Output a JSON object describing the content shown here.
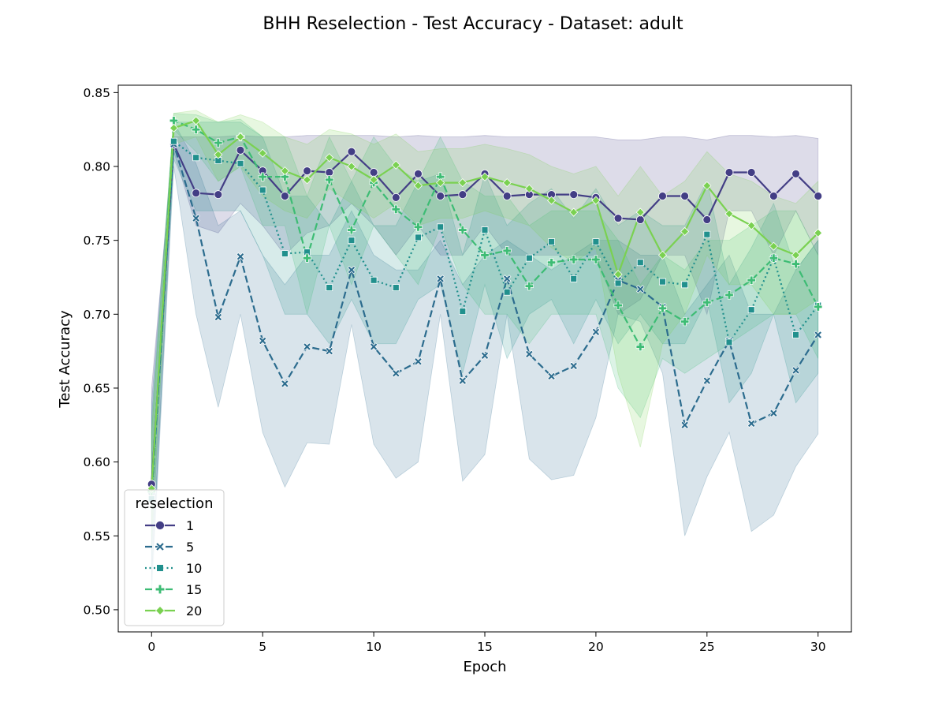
{
  "chart_data": {
    "type": "line",
    "title": "BHH Reselection - Test Accuracy - Dataset: adult",
    "xlabel": "Epoch",
    "ylabel": "Test Accuracy",
    "xlim": [
      -1.5,
      31.5
    ],
    "ylim": [
      0.485,
      0.855
    ],
    "xticks": [
      0,
      5,
      10,
      15,
      20,
      25,
      30
    ],
    "yticks": [
      0.5,
      0.55,
      0.6,
      0.65,
      0.7,
      0.75,
      0.8,
      0.85
    ],
    "grid": false,
    "legend": {
      "title": "reselection",
      "placement": "lower-left"
    },
    "x": [
      0,
      1,
      2,
      3,
      4,
      5,
      6,
      7,
      8,
      9,
      10,
      11,
      12,
      13,
      14,
      15,
      16,
      17,
      18,
      19,
      20,
      21,
      22,
      23,
      24,
      25,
      26,
      27,
      28,
      29,
      30
    ],
    "series": [
      {
        "name": "1",
        "color": "#433e85",
        "dash": "solid",
        "marker": "circle",
        "values": [
          0.585,
          0.815,
          0.782,
          0.781,
          0.811,
          0.797,
          0.78,
          0.797,
          0.796,
          0.81,
          0.796,
          0.779,
          0.795,
          0.78,
          0.781,
          0.795,
          0.78,
          0.781,
          0.781,
          0.781,
          0.779,
          0.765,
          0.764,
          0.78,
          0.78,
          0.764,
          0.796,
          0.796,
          0.78,
          0.795,
          0.78
        ],
        "lower": [
          0.52,
          0.81,
          0.76,
          0.755,
          0.775,
          0.76,
          0.74,
          0.755,
          0.76,
          0.775,
          0.76,
          0.74,
          0.76,
          0.74,
          0.74,
          0.76,
          0.74,
          0.74,
          0.74,
          0.74,
          0.74,
          0.7,
          0.71,
          0.74,
          0.74,
          0.7,
          0.77,
          0.77,
          0.74,
          0.77,
          0.74
        ],
        "upper": [
          0.65,
          0.82,
          0.82,
          0.82,
          0.821,
          0.82,
          0.82,
          0.821,
          0.821,
          0.821,
          0.821,
          0.82,
          0.821,
          0.82,
          0.82,
          0.821,
          0.82,
          0.82,
          0.82,
          0.82,
          0.82,
          0.818,
          0.818,
          0.82,
          0.82,
          0.818,
          0.821,
          0.821,
          0.82,
          0.821,
          0.819
        ]
      },
      {
        "name": "5",
        "color": "#2c6c8e",
        "dash": "dashed",
        "marker": "x",
        "values": [
          0.577,
          0.815,
          0.765,
          0.698,
          0.739,
          0.682,
          0.653,
          0.678,
          0.675,
          0.73,
          0.678,
          0.66,
          0.668,
          0.724,
          0.655,
          0.672,
          0.724,
          0.673,
          0.658,
          0.665,
          0.688,
          0.723,
          0.717,
          0.705,
          0.625,
          0.655,
          0.682,
          0.626,
          0.633,
          0.662,
          0.686
        ],
        "lower": [
          0.51,
          0.8,
          0.7,
          0.637,
          0.7,
          0.62,
          0.583,
          0.613,
          0.612,
          0.693,
          0.612,
          0.589,
          0.6,
          0.7,
          0.587,
          0.605,
          0.7,
          0.602,
          0.588,
          0.591,
          0.63,
          0.7,
          0.695,
          0.66,
          0.55,
          0.59,
          0.62,
          0.553,
          0.564,
          0.597,
          0.619
        ],
        "upper": [
          0.64,
          0.83,
          0.802,
          0.76,
          0.77,
          0.74,
          0.72,
          0.74,
          0.74,
          0.77,
          0.74,
          0.73,
          0.73,
          0.75,
          0.72,
          0.74,
          0.75,
          0.74,
          0.73,
          0.74,
          0.75,
          0.75,
          0.74,
          0.74,
          0.7,
          0.72,
          0.74,
          0.7,
          0.7,
          0.73,
          0.75
        ]
      },
      {
        "name": "10",
        "color": "#21908d",
        "dash": "dotted",
        "marker": "square",
        "values": [
          0.575,
          0.817,
          0.806,
          0.804,
          0.802,
          0.784,
          0.741,
          0.742,
          0.718,
          0.75,
          0.723,
          0.718,
          0.752,
          0.759,
          0.702,
          0.757,
          0.715,
          0.738,
          0.749,
          0.724,
          0.749,
          0.721,
          0.735,
          0.722,
          0.72,
          0.754,
          0.681,
          0.703,
          0.738,
          0.686,
          0.706
        ],
        "lower": [
          0.52,
          0.805,
          0.77,
          0.77,
          0.77,
          0.74,
          0.7,
          0.7,
          0.68,
          0.71,
          0.68,
          0.68,
          0.71,
          0.72,
          0.66,
          0.72,
          0.67,
          0.7,
          0.71,
          0.68,
          0.71,
          0.68,
          0.7,
          0.68,
          0.68,
          0.71,
          0.64,
          0.66,
          0.7,
          0.64,
          0.66
        ],
        "upper": [
          0.63,
          0.83,
          0.83,
          0.83,
          0.83,
          0.82,
          0.78,
          0.78,
          0.76,
          0.79,
          0.76,
          0.76,
          0.79,
          0.795,
          0.74,
          0.795,
          0.76,
          0.775,
          0.785,
          0.765,
          0.785,
          0.76,
          0.77,
          0.76,
          0.76,
          0.79,
          0.72,
          0.745,
          0.775,
          0.73,
          0.75
        ]
      },
      {
        "name": "15",
        "color": "#3dbc74",
        "dash": "dashed",
        "marker": "plus",
        "values": [
          0.58,
          0.831,
          0.825,
          0.816,
          0.82,
          0.793,
          0.793,
          0.738,
          0.791,
          0.757,
          0.789,
          0.771,
          0.759,
          0.793,
          0.757,
          0.74,
          0.743,
          0.719,
          0.735,
          0.737,
          0.737,
          0.706,
          0.678,
          0.704,
          0.695,
          0.708,
          0.713,
          0.723,
          0.738,
          0.734,
          0.705
        ],
        "lower": [
          0.54,
          0.825,
          0.81,
          0.79,
          0.8,
          0.76,
          0.76,
          0.7,
          0.76,
          0.72,
          0.76,
          0.74,
          0.72,
          0.76,
          0.72,
          0.7,
          0.7,
          0.68,
          0.7,
          0.7,
          0.7,
          0.65,
          0.63,
          0.67,
          0.66,
          0.67,
          0.68,
          0.69,
          0.7,
          0.7,
          0.67
        ],
        "upper": [
          0.62,
          0.836,
          0.835,
          0.83,
          0.832,
          0.82,
          0.82,
          0.78,
          0.82,
          0.79,
          0.82,
          0.8,
          0.79,
          0.82,
          0.79,
          0.78,
          0.78,
          0.76,
          0.77,
          0.77,
          0.77,
          0.75,
          0.72,
          0.74,
          0.73,
          0.75,
          0.75,
          0.76,
          0.77,
          0.77,
          0.74
        ]
      },
      {
        "name": "20",
        "color": "#7ad151",
        "dash": "solid",
        "marker": "diamond",
        "values": [
          0.582,
          0.826,
          0.831,
          0.808,
          0.82,
          0.809,
          0.797,
          0.791,
          0.806,
          0.8,
          0.791,
          0.801,
          0.787,
          0.789,
          0.789,
          0.793,
          0.789,
          0.785,
          0.777,
          0.769,
          0.777,
          0.727,
          0.769,
          0.74,
          0.756,
          0.787,
          0.768,
          0.76,
          0.746,
          0.74,
          0.755
        ],
        "lower": [
          0.55,
          0.815,
          0.82,
          0.79,
          0.8,
          0.78,
          0.77,
          0.765,
          0.785,
          0.775,
          0.765,
          0.775,
          0.76,
          0.765,
          0.765,
          0.77,
          0.765,
          0.76,
          0.745,
          0.735,
          0.745,
          0.66,
          0.61,
          0.68,
          0.7,
          0.74,
          0.72,
          0.72,
          0.7,
          0.7,
          0.71
        ],
        "upper": [
          0.62,
          0.836,
          0.838,
          0.83,
          0.835,
          0.83,
          0.82,
          0.815,
          0.825,
          0.822,
          0.815,
          0.822,
          0.81,
          0.812,
          0.812,
          0.815,
          0.812,
          0.808,
          0.8,
          0.795,
          0.8,
          0.78,
          0.8,
          0.78,
          0.79,
          0.81,
          0.795,
          0.79,
          0.78,
          0.775,
          0.79
        ]
      }
    ]
  }
}
